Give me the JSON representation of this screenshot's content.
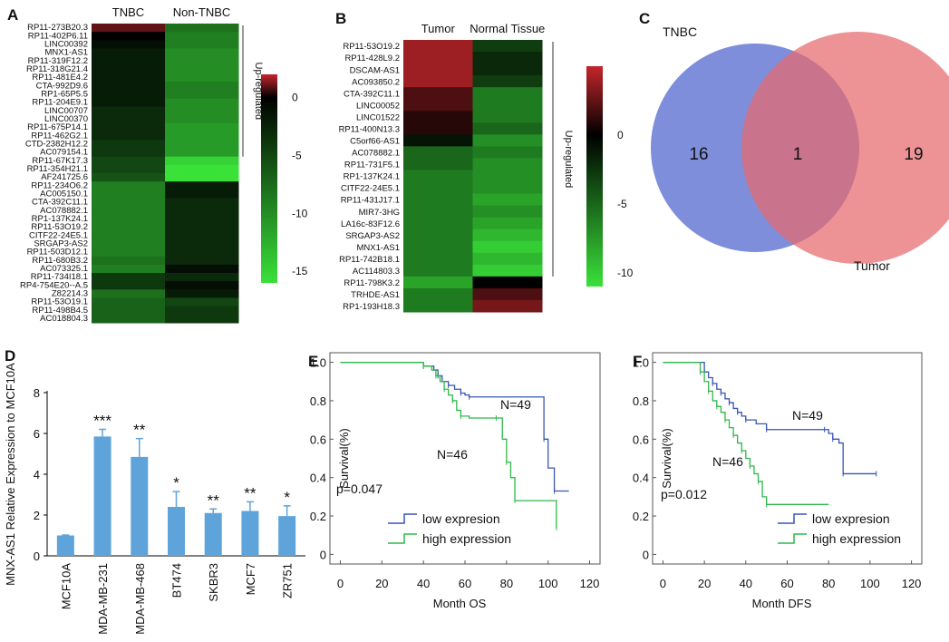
{
  "panels": {
    "A": "A",
    "B": "B",
    "C": "C",
    "D": "D",
    "E": "E",
    "F": "F"
  },
  "heatmap_colorscale": {
    "high": "#c4262c",
    "mid": "#000000",
    "low": "#39e139"
  },
  "chart_data": [
    {
      "panel": "A",
      "type": "heatmap",
      "columns": [
        "TNBC",
        "Non-TNBC"
      ],
      "highlight_row": "MNX1-AS1",
      "highlight_color": "#e8221c",
      "bracket_label": "Up-regulated",
      "bracket_rows": 16,
      "colorbar": {
        "ticks": [
          "0",
          "-5",
          "-10",
          "-15"
        ],
        "range": [
          -16,
          2
        ]
      },
      "rows": [
        "RP11-273B20.3",
        "RP11-402P6.11",
        "LINC00392",
        "MNX1-AS1",
        "RP11-319F12.2",
        "RP11-318G21.4",
        "RP11-481E4.2",
        "CTA-992D9.6",
        "RP1-65P5.5",
        "RP11-204E9.1",
        "LINC00707",
        "LINC00370",
        "RP11-675P14.1",
        "RP11-462G2.1",
        "CTD-2382H12.2",
        "AC079154.1",
        "RP11-67K17.3",
        "RP11-354H21.1",
        "AF241725.6",
        "RP11-234O6.2",
        "AC005150.1",
        "CTA-392C11.1",
        "AC078882.1",
        "RP1-137K24.1",
        "RP11-53O19.2",
        "CITF22-24E5.1",
        "SRGAP3-AS2",
        "RP11-503D12.1",
        "RP11-680B3.2",
        "AC073325.1",
        "RP11-734I18.1",
        "RP4-754E20--A.5",
        "Z82214.3",
        "RP11-53O19.1",
        "RP11-498B4.5",
        "AC018804.3"
      ],
      "values": [
        [
          1,
          -8
        ],
        [
          0,
          -9
        ],
        [
          -1,
          -9
        ],
        [
          -2,
          -10
        ],
        [
          -2,
          -10
        ],
        [
          -2,
          -10
        ],
        [
          -2,
          -10
        ],
        [
          -2,
          -9
        ],
        [
          -2,
          -9
        ],
        [
          -2,
          -10
        ],
        [
          -3,
          -10
        ],
        [
          -3,
          -10
        ],
        [
          -3,
          -11
        ],
        [
          -3,
          -11
        ],
        [
          -4,
          -11
        ],
        [
          -4,
          -11
        ],
        [
          -5,
          -15
        ],
        [
          -5,
          -16
        ],
        [
          -6,
          -16
        ],
        [
          -9,
          -2
        ],
        [
          -9,
          -2
        ],
        [
          -9,
          -3
        ],
        [
          -9,
          -3
        ],
        [
          -9,
          -3
        ],
        [
          -9,
          -3
        ],
        [
          -9,
          -3
        ],
        [
          -9,
          -3
        ],
        [
          -9,
          -3
        ],
        [
          -8,
          -3
        ],
        [
          -9,
          -1
        ],
        [
          -4,
          -3
        ],
        [
          -4,
          -1
        ],
        [
          -8,
          -2
        ],
        [
          -7,
          -5
        ],
        [
          -7,
          -4
        ],
        [
          -7,
          -4
        ]
      ]
    },
    {
      "panel": "B",
      "type": "heatmap",
      "columns": [
        "Tumor",
        "Normal Tissue"
      ],
      "highlight_row": "MNX1-AS1",
      "highlight_color": "#e8221c",
      "bracket_label": "Up-regulated",
      "bracket_rows": 20,
      "colorbar": {
        "ticks": [
          "0",
          "-5",
          "-10"
        ],
        "range": [
          -11,
          5
        ]
      },
      "rows": [
        "RP11-53O19.2",
        "RP11-428L9.2",
        "DSCAM-AS1",
        "AC093850.2",
        "CTA-392C11.1",
        "LINC00052",
        "LINC01522",
        "RP11-400N13.3",
        "C5orf66-AS1",
        "AC078882.1",
        "RP11-731F5.1",
        "RP1-137K24.1",
        "CITF22-24E5.1",
        "RP11-431J17.1",
        "MIR7-3HG",
        "LA16c-83F12.6",
        "SRGAP3-AS2",
        "MNX1-AS1",
        "RP11-742B18.1",
        "AC114803.3",
        "RP11-798K3.2",
        "TRHDE-AS1",
        "RP1-193H18.3"
      ],
      "values": [
        [
          4,
          -3
        ],
        [
          4,
          -2
        ],
        [
          4,
          -2
        ],
        [
          4,
          -3
        ],
        [
          2,
          -6
        ],
        [
          2,
          -6
        ],
        [
          1,
          -6
        ],
        [
          1,
          -5
        ],
        [
          -1,
          -7
        ],
        [
          -5,
          -6
        ],
        [
          -5,
          -7
        ],
        [
          -6,
          -7
        ],
        [
          -6,
          -7
        ],
        [
          -6,
          -8
        ],
        [
          -6,
          -7
        ],
        [
          -6,
          -8
        ],
        [
          -6,
          -9
        ],
        [
          -6,
          -10
        ],
        [
          -6,
          -9
        ],
        [
          -6,
          -10
        ],
        [
          -8,
          0
        ],
        [
          -6,
          2
        ],
        [
          -6,
          3
        ]
      ]
    },
    {
      "panel": "C",
      "type": "venn",
      "sets": [
        {
          "name": "TNBC",
          "only": 16,
          "color": "#6d7ed6"
        },
        {
          "name": "Tumor",
          "only": 19,
          "color": "#e66a6e"
        }
      ],
      "intersection": 1,
      "intersection_label": "1"
    },
    {
      "panel": "D",
      "type": "bar",
      "ylabel": "MNX-AS1 Relative Expression to MCF10A",
      "ylim": [
        0,
        8
      ],
      "yticks": [
        "0",
        "2",
        "4",
        "6",
        "8"
      ],
      "color": "#5fa3db",
      "categories": [
        "MCF10A",
        "MDA-MB-231",
        "MDA-MB-468",
        "BT474",
        "SKBR3",
        "MCF7",
        "ZR751"
      ],
      "values": [
        1.0,
        5.85,
        4.85,
        2.4,
        2.1,
        2.2,
        1.95
      ],
      "errors": [
        0.02,
        0.35,
        0.9,
        0.75,
        0.2,
        0.45,
        0.5
      ],
      "significance": [
        "",
        "***",
        "**",
        "*",
        "**",
        "**",
        "*"
      ]
    },
    {
      "panel": "E",
      "type": "line",
      "xlabel": "Month   OS",
      "ylabel": "Survival(%)",
      "xlim": [
        -5,
        125
      ],
      "ylim": [
        -0.05,
        1.05
      ],
      "xticks": [
        "0",
        "20",
        "40",
        "60",
        "80",
        "100",
        "120"
      ],
      "yticks": [
        "0",
        "0.2",
        "0.4",
        "0.6",
        "0.8",
        "1.0"
      ],
      "pvalue": "p=0.047",
      "annotations": [
        "N=49",
        "N=46"
      ],
      "series": [
        {
          "name": "low expresion",
          "color": "#3a55b4",
          "x": [
            0,
            30,
            40,
            45,
            47,
            49,
            52,
            55,
            58,
            60,
            62,
            95,
            98,
            100,
            103,
            110
          ],
          "y": [
            1,
            1,
            0.98,
            0.96,
            0.93,
            0.9,
            0.88,
            0.86,
            0.84,
            0.83,
            0.82,
            0.82,
            0.6,
            0.45,
            0.33,
            0.33
          ]
        },
        {
          "name": "high expression",
          "color": "#2eb84a",
          "x": [
            0,
            28,
            40,
            44,
            46,
            48,
            50,
            52,
            54,
            56,
            58,
            62,
            75,
            78,
            80,
            82,
            84,
            102,
            104
          ],
          "y": [
            1,
            1,
            0.98,
            0.96,
            0.93,
            0.9,
            0.86,
            0.83,
            0.8,
            0.75,
            0.72,
            0.71,
            0.71,
            0.6,
            0.48,
            0.4,
            0.28,
            0.28,
            0.14
          ]
        }
      ]
    },
    {
      "panel": "F",
      "type": "line",
      "xlabel": "Month   DFS",
      "ylabel": "Survival(%)",
      "xlim": [
        -5,
        125
      ],
      "ylim": [
        -0.05,
        1.05
      ],
      "xticks": [
        "0",
        "20",
        "40",
        "60",
        "80",
        "100",
        "120"
      ],
      "yticks": [
        "0",
        "0.2",
        "0.4",
        "0.6",
        "0.8",
        "1.0"
      ],
      "pvalue": "p=0.012",
      "annotations": [
        "N=49",
        "N=46"
      ],
      "series": [
        {
          "name": "low expresion",
          "color": "#3a55b4",
          "x": [
            0,
            18,
            20,
            22,
            24,
            26,
            28,
            30,
            32,
            34,
            36,
            38,
            40,
            45,
            50,
            55,
            78,
            80,
            82,
            85,
            87,
            90,
            103
          ],
          "y": [
            1,
            1,
            0.95,
            0.92,
            0.89,
            0.86,
            0.84,
            0.81,
            0.79,
            0.76,
            0.74,
            0.72,
            0.7,
            0.68,
            0.65,
            0.65,
            0.65,
            0.63,
            0.6,
            0.58,
            0.42,
            0.42,
            0.42
          ]
        },
        {
          "name": "high expression",
          "color": "#2eb84a",
          "x": [
            0,
            16,
            18,
            20,
            22,
            24,
            26,
            28,
            30,
            32,
            34,
            36,
            38,
            40,
            42,
            44,
            46,
            48,
            50,
            80
          ],
          "y": [
            1,
            1,
            0.95,
            0.9,
            0.85,
            0.8,
            0.77,
            0.74,
            0.7,
            0.66,
            0.62,
            0.58,
            0.54,
            0.5,
            0.46,
            0.42,
            0.38,
            0.3,
            0.26,
            0.26
          ]
        }
      ]
    }
  ]
}
